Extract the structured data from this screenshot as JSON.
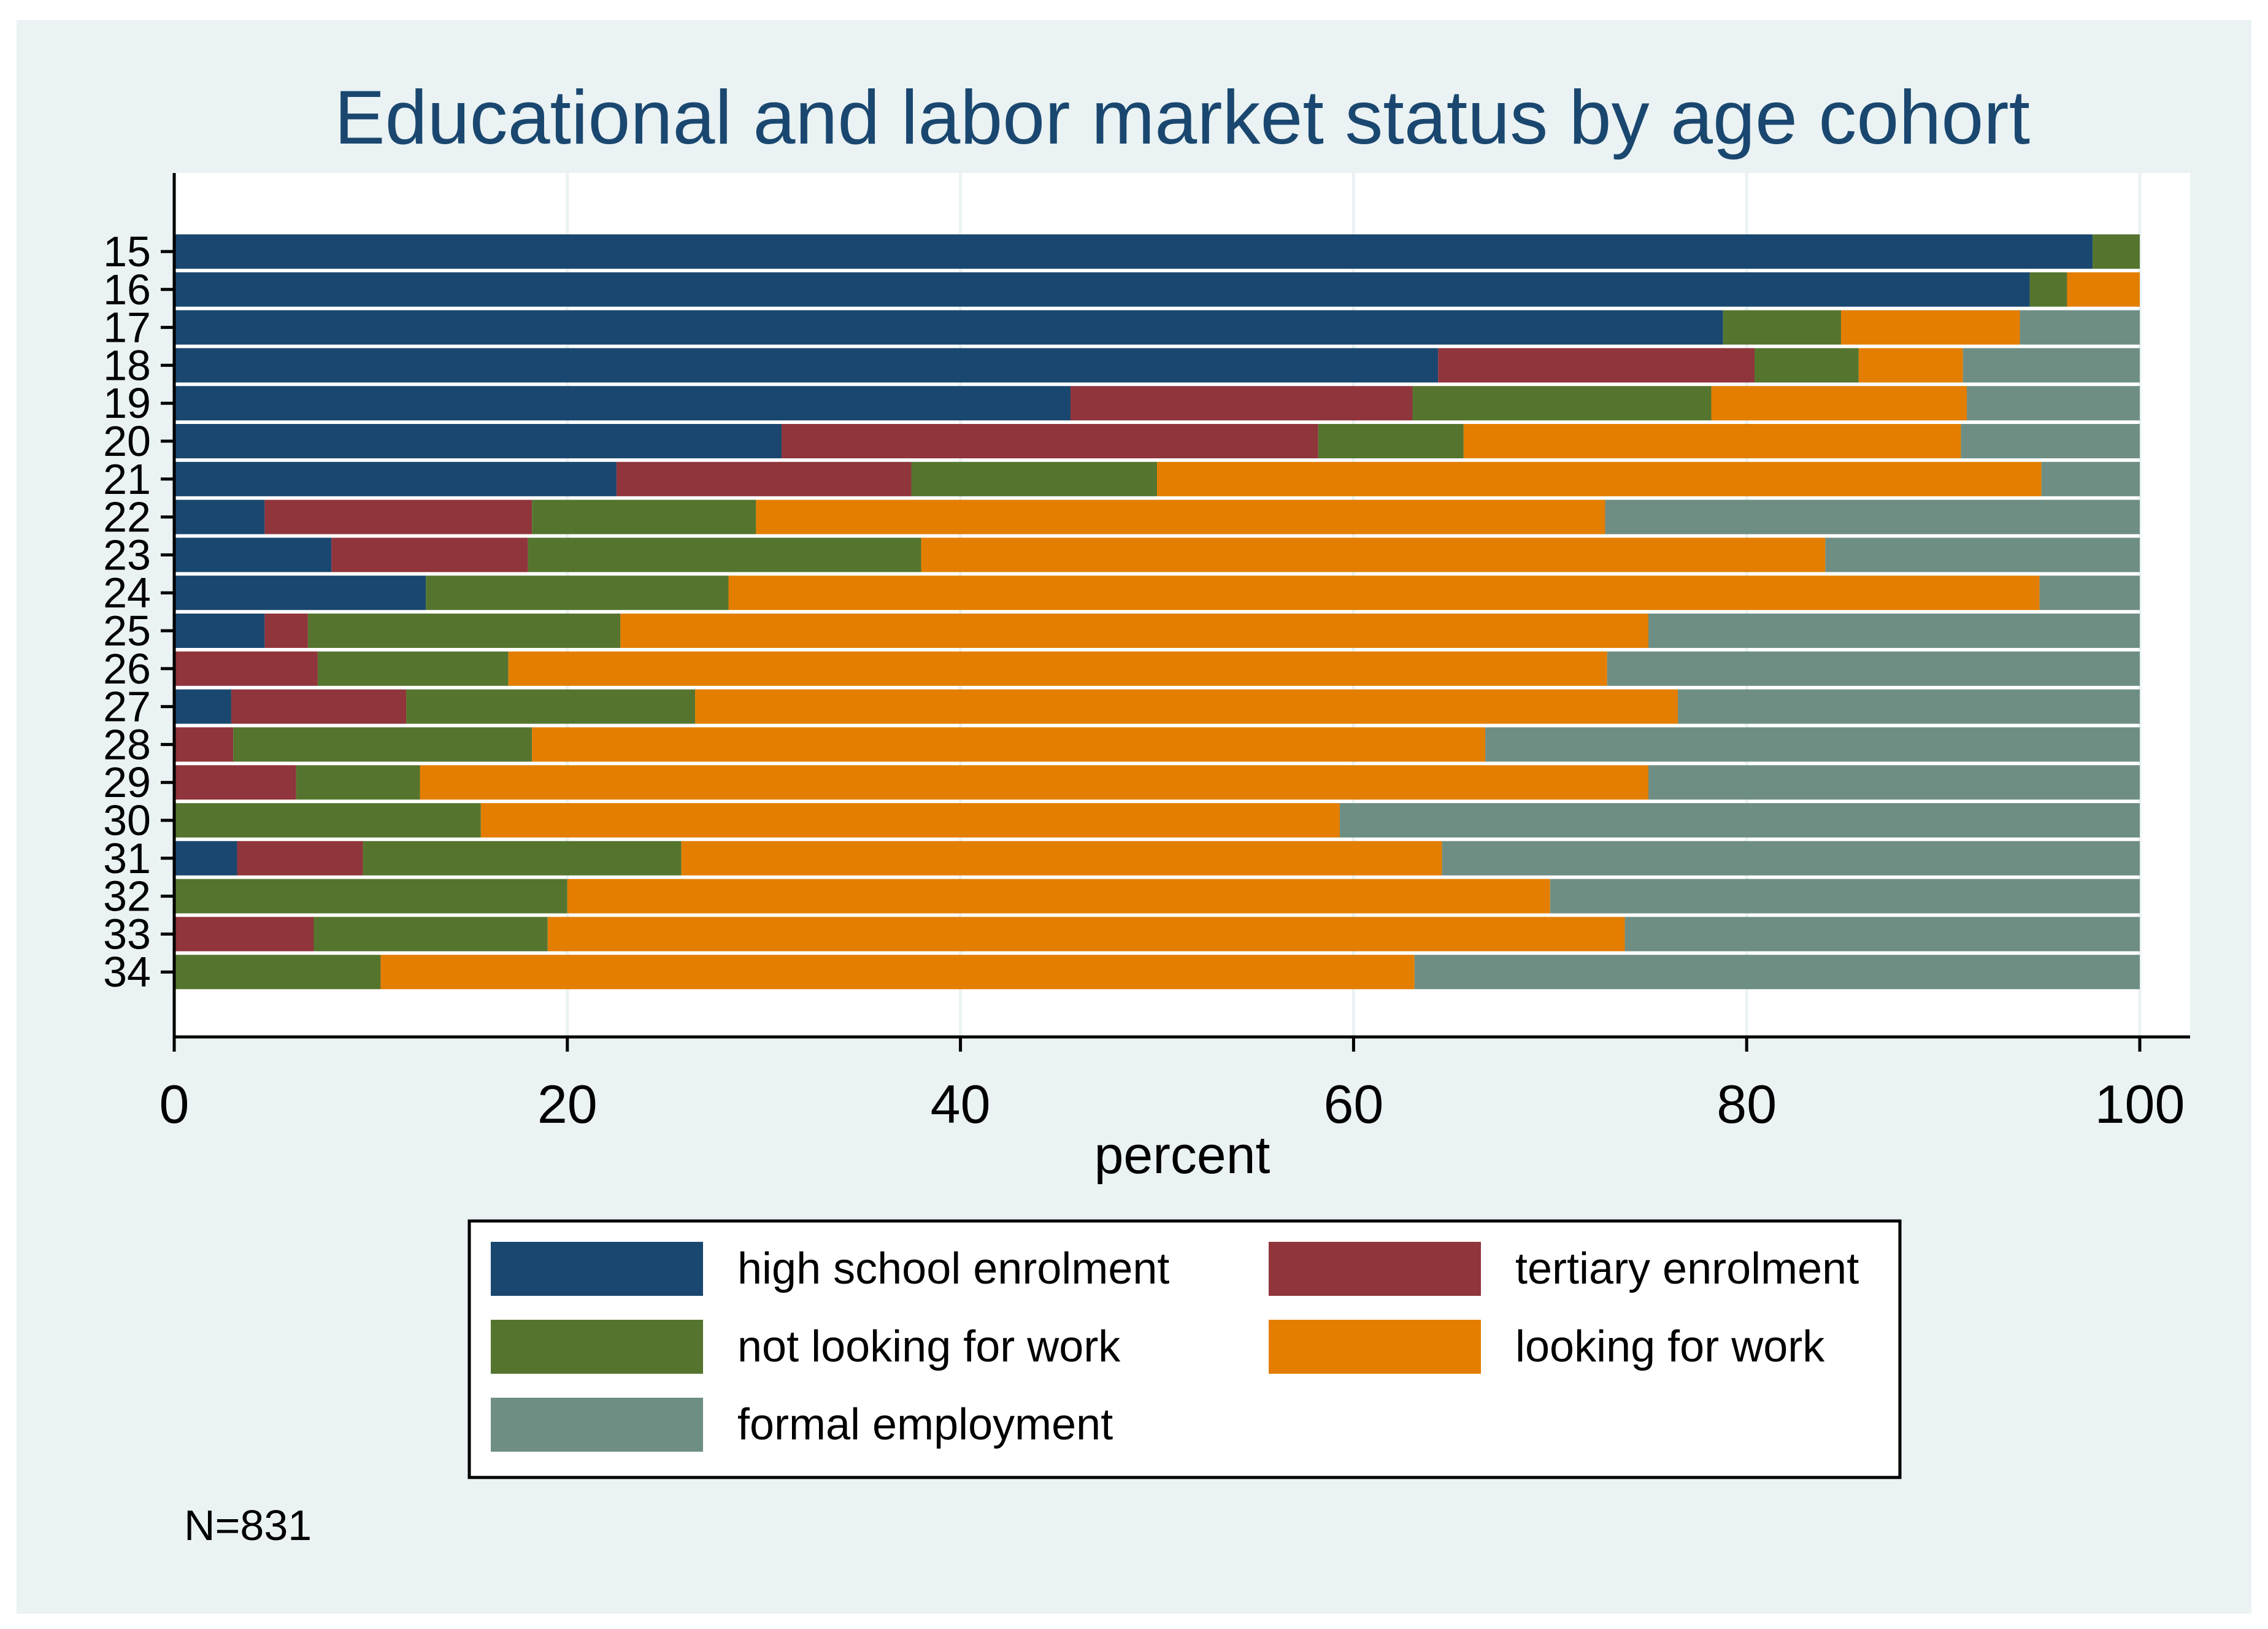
{
  "chart_data": {
    "type": "bar",
    "orientation": "horizontal",
    "stacked": true,
    "title": "Educational and labor market status by age cohort",
    "xlabel": "percent",
    "ylabel": "",
    "xlim": [
      0,
      100
    ],
    "x_ticks": [
      0,
      20,
      40,
      60,
      80,
      100
    ],
    "grid": true,
    "legend_position": "bottom",
    "note": "N=831",
    "categories": [
      "15",
      "16",
      "17",
      "18",
      "19",
      "20",
      "21",
      "22",
      "23",
      "24",
      "25",
      "26",
      "27",
      "28",
      "29",
      "30",
      "31",
      "32",
      "33",
      "34"
    ],
    "series": [
      {
        "name": "high school enrolment",
        "color": "#1a476f",
        "values": [
          97.6,
          94.4,
          78.8,
          64.3,
          45.6,
          30.9,
          22.5,
          4.6,
          8.0,
          12.8,
          4.6,
          0,
          2.9,
          0,
          0,
          0,
          3.2,
          0,
          0,
          0
        ]
      },
      {
        "name": "tertiary enrolment",
        "color": "#90353b",
        "values": [
          0,
          0,
          0,
          16.1,
          17.4,
          27.3,
          15.0,
          13.6,
          10.0,
          0,
          2.2,
          7.3,
          8.9,
          3.0,
          6.2,
          0,
          6.4,
          0,
          7.1,
          0
        ]
      },
      {
        "name": "not looking for work",
        "color": "#55752f",
        "values": [
          2.4,
          1.9,
          6.0,
          5.3,
          15.2,
          7.4,
          12.5,
          11.4,
          20.0,
          15.4,
          15.9,
          9.7,
          14.7,
          15.2,
          6.3,
          15.6,
          16.2,
          20.0,
          11.9,
          10.5
        ]
      },
      {
        "name": "looking for work",
        "color": "#e37e00",
        "values": [
          0,
          3.7,
          9.1,
          5.3,
          13.0,
          25.3,
          45.0,
          43.2,
          46.0,
          66.7,
          52.3,
          55.9,
          50.0,
          48.5,
          62.5,
          43.7,
          38.7,
          50.0,
          54.8,
          52.6
        ]
      },
      {
        "name": "formal employment",
        "color": "#6e8e84",
        "values": [
          0,
          0,
          6.1,
          9.0,
          8.8,
          9.1,
          5.0,
          27.2,
          16.0,
          5.1,
          25.0,
          27.1,
          23.5,
          33.3,
          25.0,
          40.7,
          35.5,
          30.0,
          26.2,
          36.9
        ]
      }
    ]
  },
  "style": {
    "page_background": "#ffffff",
    "outer_background": "#eaf2f3",
    "plot_background": "#ffffff",
    "gridline_color": "#eaf2f3",
    "axis_color": "#000000",
    "title_color": "#1a476f"
  }
}
